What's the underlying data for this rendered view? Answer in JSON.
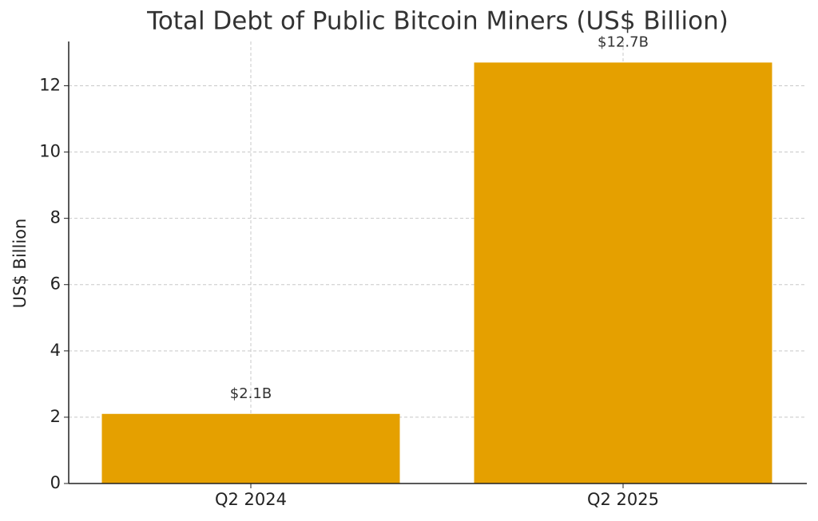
{
  "chart_data": {
    "type": "bar",
    "title": "Total Debt of Public Bitcoin Miners (US$ Billion)",
    "y_label": "US$ Billion",
    "categories": [
      "Q2 2024",
      "Q2 2025"
    ],
    "values": [
      2.1,
      12.7
    ],
    "value_labels": [
      "$2.1B",
      "$12.7B"
    ],
    "color": "#e5a000",
    "ylim": [
      0,
      13.335
    ],
    "yticks": [
      0,
      2,
      4,
      6,
      8,
      10,
      12
    ],
    "grid": true
  }
}
